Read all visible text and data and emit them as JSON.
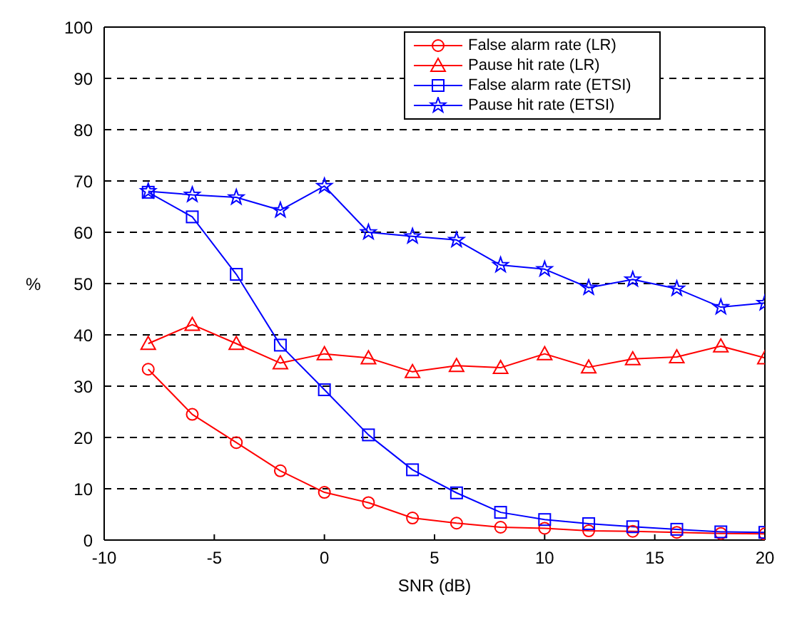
{
  "chart_data": {
    "type": "line",
    "xlabel": "SNR (dB)",
    "ylabel": "%",
    "x": [
      -8,
      -6,
      -4,
      -2,
      0,
      2,
      4,
      6,
      8,
      10,
      12,
      14,
      16,
      18,
      20
    ],
    "xlim": [
      -10,
      20
    ],
    "xticks": [
      -10,
      -5,
      0,
      5,
      10,
      15,
      20
    ],
    "ylim": [
      0,
      100
    ],
    "yticks": [
      0,
      10,
      20,
      30,
      40,
      50,
      60,
      70,
      80,
      90,
      100
    ],
    "grid": "y",
    "legend": "top right",
    "line_style": "solid",
    "series": [
      {
        "name": "False alarm rate (LR)",
        "color": "#ff0000",
        "marker": "circle",
        "values": [
          33.3,
          24.5,
          19,
          13.5,
          9.3,
          7.3,
          4.3,
          3.3,
          2.5,
          2.3,
          1.8,
          1.7,
          1.5,
          1.3,
          1.2
        ]
      },
      {
        "name": "Pause hit rate (LR)",
        "color": "#ff0000",
        "marker": "triangle",
        "values": [
          38.3,
          42,
          38.3,
          34.5,
          36.3,
          35.5,
          32.8,
          34,
          33.6,
          36.3,
          33.7,
          35.3,
          35.7,
          37.8,
          35.5
        ]
      },
      {
        "name": "False alarm rate (ETSI)",
        "color": "#0000ff",
        "marker": "square",
        "values": [
          67.8,
          63,
          51.8,
          38,
          29.3,
          20.5,
          13.7,
          9.2,
          5.4,
          4,
          3.2,
          2.6,
          2.1,
          1.6,
          1.5
        ]
      },
      {
        "name": "Pause hit rate (ETSI)",
        "color": "#0000ff",
        "marker": "star",
        "values": [
          68,
          67.3,
          66.8,
          64.3,
          69,
          60,
          59.2,
          58.5,
          53.6,
          52.8,
          49.2,
          50.8,
          49,
          45.4,
          46.2
        ]
      }
    ]
  }
}
